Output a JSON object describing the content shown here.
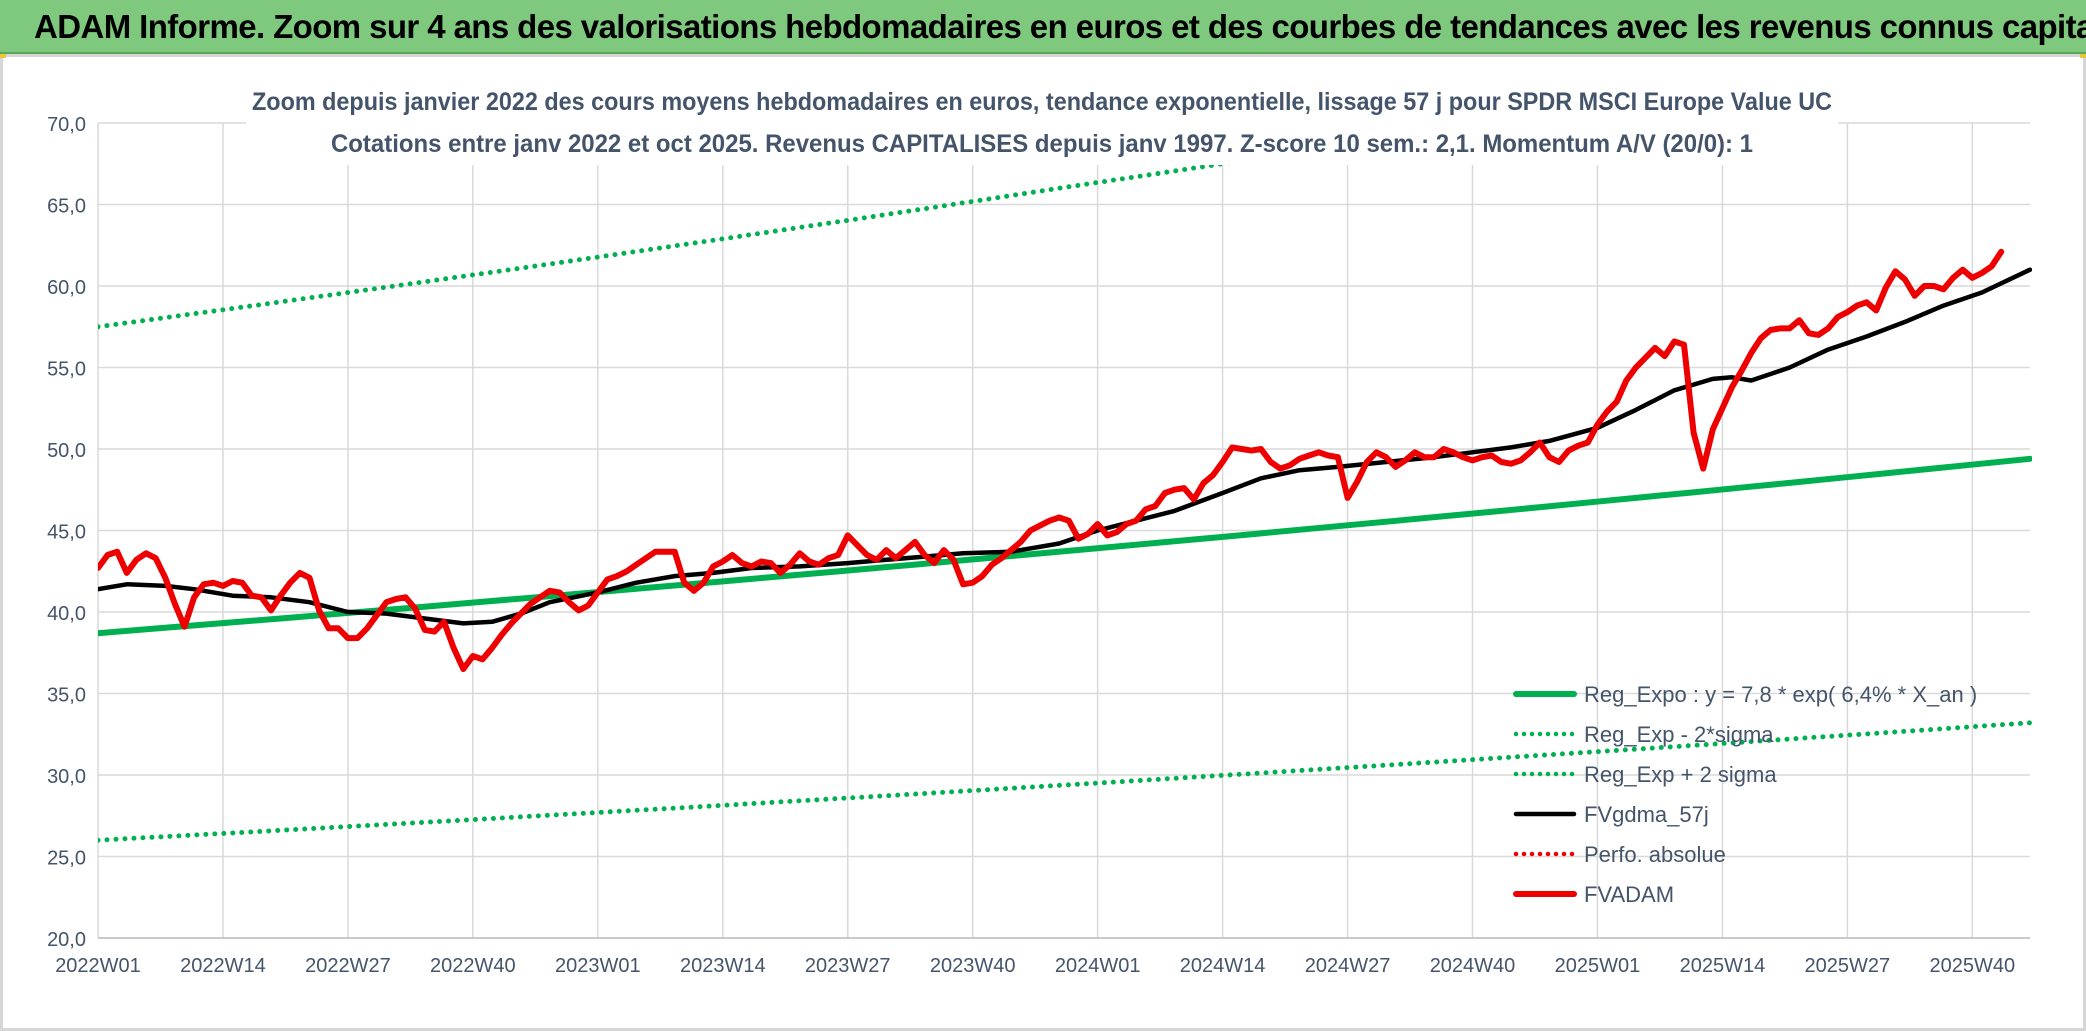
{
  "banner": {
    "title": "ADAM Informe. Zoom sur 4 ans des valorisations hebdomadaires en euros et des courbes de tendances avec les revenus connus capitalisés"
  },
  "colors": {
    "banner_bg": "#7fc97f",
    "green": "#00b050",
    "red": "#ee0000",
    "black": "#000000",
    "axis_text": "#44546a",
    "grid": "#d9d9d9"
  },
  "chart_data": {
    "type": "line",
    "title": "Zoom depuis janvier 2022 des cours moyens hebdomadaires en euros, tendance exponentielle, lissage 57 j pour SPDR MSCI Europe Value UC",
    "subtitle": "Cotations entre janv 2022 et oct 2025. Revenus CAPITALISES depuis janv 1997. Z-score 10 sem.: 2,1. Momentum A/V (20/0): 1",
    "xlabel": "",
    "ylabel": "",
    "ylim": [
      20,
      70
    ],
    "y_ticks": [
      "70,0",
      "65,0",
      "60,0",
      "55,0",
      "50,0",
      "45,0",
      "40,0",
      "35,0",
      "30,0",
      "25,0",
      "20,0"
    ],
    "x_tick_labels": [
      "2022W01",
      "2022W14",
      "2022W27",
      "2022W40",
      "2023W01",
      "2023W14",
      "2023W27",
      "2023W40",
      "2024W01",
      "2024W14",
      "2024W27",
      "2024W40",
      "2025W01",
      "2025W14",
      "2025W27",
      "2025W40"
    ],
    "x_range_weeks": [
      0,
      201
    ],
    "grid": true,
    "legend_position": "bottom-right",
    "legend": [
      {
        "label": "Reg_Expo : y = 7,8 * exp( 6,4% *  X_an )",
        "style": "solid-thick",
        "color": "#00b050"
      },
      {
        "label": "Reg_Exp - 2*sigma",
        "style": "dotted",
        "color": "#00b050"
      },
      {
        "label": "Reg_Exp + 2 sigma",
        "style": "dotted",
        "color": "#00b050"
      },
      {
        "label": "FVgdma_57j",
        "style": "solid",
        "color": "#000000"
      },
      {
        "label": "Perfo. absolue",
        "style": "dotted",
        "color": "#ee0000"
      },
      {
        "label": "FVADAM",
        "style": "solid-thick",
        "color": "#ee0000"
      }
    ],
    "series": [
      {
        "name": "Reg_Expo",
        "points": [
          [
            0,
            38.7
          ],
          [
            201,
            49.4
          ]
        ]
      },
      {
        "name": "Reg_Exp - 2*sigma",
        "points": [
          [
            0,
            26.0
          ],
          [
            201,
            33.2
          ]
        ]
      },
      {
        "name": "Reg_Exp + 2 sigma",
        "points": [
          [
            0,
            57.5
          ],
          [
            100,
            66.0
          ],
          [
            201,
            75.4
          ]
        ]
      },
      {
        "name": "FVgdma_57j",
        "points": [
          [
            0,
            41.4
          ],
          [
            3,
            41.7
          ],
          [
            7,
            41.6
          ],
          [
            10,
            41.4
          ],
          [
            14,
            41.0
          ],
          [
            18,
            40.9
          ],
          [
            22,
            40.6
          ],
          [
            26,
            40.0
          ],
          [
            30,
            39.9
          ],
          [
            34,
            39.6
          ],
          [
            38,
            39.3
          ],
          [
            41,
            39.4
          ],
          [
            44,
            39.9
          ],
          [
            47,
            40.6
          ],
          [
            52,
            41.2
          ],
          [
            56,
            41.8
          ],
          [
            60,
            42.2
          ],
          [
            64,
            42.4
          ],
          [
            68,
            42.7
          ],
          [
            73,
            42.8
          ],
          [
            78,
            43.0
          ],
          [
            82,
            43.2
          ],
          [
            86,
            43.4
          ],
          [
            90,
            43.6
          ],
          [
            95,
            43.7
          ],
          [
            100,
            44.2
          ],
          [
            104,
            45.0
          ],
          [
            108,
            45.6
          ],
          [
            112,
            46.2
          ],
          [
            117,
            47.3
          ],
          [
            121,
            48.2
          ],
          [
            125,
            48.7
          ],
          [
            129,
            48.9
          ],
          [
            134,
            49.2
          ],
          [
            139,
            49.5
          ],
          [
            143,
            49.8
          ],
          [
            147,
            50.1
          ],
          [
            151,
            50.5
          ],
          [
            156,
            51.3
          ],
          [
            160,
            52.4
          ],
          [
            164,
            53.6
          ],
          [
            168,
            54.3
          ],
          [
            170,
            54.4
          ],
          [
            172,
            54.2
          ],
          [
            176,
            55.0
          ],
          [
            180,
            56.1
          ],
          [
            184,
            56.9
          ],
          [
            188,
            57.8
          ],
          [
            192,
            58.8
          ],
          [
            196,
            59.6
          ],
          [
            201,
            61.0
          ]
        ]
      },
      {
        "name": "FVADAM",
        "points": [
          [
            0,
            42.7
          ],
          [
            1,
            43.5
          ],
          [
            2,
            43.7
          ],
          [
            3,
            42.4
          ],
          [
            4,
            43.2
          ],
          [
            5,
            43.6
          ],
          [
            6,
            43.3
          ],
          [
            7,
            42.1
          ],
          [
            8,
            40.5
          ],
          [
            9,
            39.1
          ],
          [
            10,
            40.9
          ],
          [
            11,
            41.7
          ],
          [
            12,
            41.8
          ],
          [
            13,
            41.6
          ],
          [
            14,
            41.9
          ],
          [
            15,
            41.8
          ],
          [
            16,
            41.0
          ],
          [
            17,
            40.9
          ],
          [
            18,
            40.1
          ],
          [
            19,
            41.0
          ],
          [
            20,
            41.8
          ],
          [
            21,
            42.4
          ],
          [
            22,
            42.1
          ],
          [
            23,
            40.1
          ],
          [
            24,
            39.0
          ],
          [
            25,
            39.0
          ],
          [
            26,
            38.4
          ],
          [
            27,
            38.4
          ],
          [
            28,
            39.0
          ],
          [
            29,
            39.8
          ],
          [
            30,
            40.6
          ],
          [
            31,
            40.8
          ],
          [
            32,
            40.9
          ],
          [
            33,
            40.2
          ],
          [
            34,
            38.9
          ],
          [
            35,
            38.8
          ],
          [
            36,
            39.4
          ],
          [
            37,
            37.8
          ],
          [
            38,
            36.5
          ],
          [
            39,
            37.3
          ],
          [
            40,
            37.1
          ],
          [
            41,
            37.8
          ],
          [
            42,
            38.6
          ],
          [
            43,
            39.3
          ],
          [
            44,
            39.9
          ],
          [
            45,
            40.5
          ],
          [
            46,
            40.9
          ],
          [
            47,
            41.3
          ],
          [
            48,
            41.2
          ],
          [
            49,
            40.6
          ],
          [
            50,
            40.1
          ],
          [
            51,
            40.4
          ],
          [
            52,
            41.2
          ],
          [
            53,
            42.0
          ],
          [
            54,
            42.2
          ],
          [
            55,
            42.5
          ],
          [
            56,
            42.9
          ],
          [
            57,
            43.3
          ],
          [
            58,
            43.7
          ],
          [
            59,
            43.7
          ],
          [
            60,
            43.7
          ],
          [
            61,
            41.8
          ],
          [
            62,
            41.3
          ],
          [
            63,
            41.8
          ],
          [
            64,
            42.8
          ],
          [
            65,
            43.1
          ],
          [
            66,
            43.5
          ],
          [
            67,
            43.0
          ],
          [
            68,
            42.8
          ],
          [
            69,
            43.1
          ],
          [
            70,
            43.0
          ],
          [
            71,
            42.4
          ],
          [
            72,
            42.9
          ],
          [
            73,
            43.6
          ],
          [
            74,
            43.1
          ],
          [
            75,
            42.9
          ],
          [
            76,
            43.3
          ],
          [
            77,
            43.5
          ],
          [
            78,
            44.7
          ],
          [
            79,
            44.1
          ],
          [
            80,
            43.5
          ],
          [
            81,
            43.2
          ],
          [
            82,
            43.8
          ],
          [
            83,
            43.3
          ],
          [
            84,
            43.8
          ],
          [
            85,
            44.3
          ],
          [
            86,
            43.5
          ],
          [
            87,
            43.0
          ],
          [
            88,
            43.8
          ],
          [
            89,
            43.2
          ],
          [
            90,
            41.7
          ],
          [
            91,
            41.8
          ],
          [
            92,
            42.2
          ],
          [
            93,
            42.9
          ],
          [
            94,
            43.3
          ],
          [
            95,
            43.8
          ],
          [
            96,
            44.3
          ],
          [
            97,
            45.0
          ],
          [
            98,
            45.3
          ],
          [
            99,
            45.6
          ],
          [
            100,
            45.8
          ],
          [
            101,
            45.6
          ],
          [
            102,
            44.5
          ],
          [
            103,
            44.8
          ],
          [
            104,
            45.4
          ],
          [
            105,
            44.7
          ],
          [
            106,
            44.9
          ],
          [
            107,
            45.4
          ],
          [
            108,
            45.6
          ],
          [
            109,
            46.3
          ],
          [
            110,
            46.5
          ],
          [
            111,
            47.3
          ],
          [
            112,
            47.5
          ],
          [
            113,
            47.6
          ],
          [
            114,
            46.9
          ],
          [
            115,
            47.9
          ],
          [
            116,
            48.4
          ],
          [
            117,
            49.2
          ],
          [
            118,
            50.1
          ],
          [
            119,
            50.0
          ],
          [
            120,
            49.9
          ],
          [
            121,
            50.0
          ],
          [
            122,
            49.2
          ],
          [
            123,
            48.8
          ],
          [
            124,
            49.0
          ],
          [
            125,
            49.4
          ],
          [
            126,
            49.6
          ],
          [
            127,
            49.8
          ],
          [
            128,
            49.6
          ],
          [
            129,
            49.5
          ],
          [
            130,
            47.0
          ],
          [
            131,
            48.0
          ],
          [
            132,
            49.2
          ],
          [
            133,
            49.8
          ],
          [
            134,
            49.5
          ],
          [
            135,
            48.9
          ],
          [
            136,
            49.3
          ],
          [
            137,
            49.8
          ],
          [
            138,
            49.5
          ],
          [
            139,
            49.5
          ],
          [
            140,
            50.0
          ],
          [
            141,
            49.8
          ],
          [
            142,
            49.5
          ],
          [
            143,
            49.3
          ],
          [
            144,
            49.5
          ],
          [
            145,
            49.6
          ],
          [
            146,
            49.2
          ],
          [
            147,
            49.1
          ],
          [
            148,
            49.3
          ],
          [
            149,
            49.8
          ],
          [
            150,
            50.4
          ],
          [
            151,
            49.5
          ],
          [
            152,
            49.2
          ],
          [
            153,
            49.9
          ],
          [
            154,
            50.2
          ],
          [
            155,
            50.4
          ],
          [
            156,
            51.5
          ],
          [
            157,
            52.3
          ],
          [
            158,
            52.9
          ],
          [
            159,
            54.2
          ],
          [
            160,
            55.0
          ],
          [
            161,
            55.6
          ],
          [
            162,
            56.2
          ],
          [
            163,
            55.7
          ],
          [
            164,
            56.6
          ],
          [
            165,
            56.4
          ],
          [
            166,
            51.0
          ],
          [
            167,
            48.8
          ],
          [
            168,
            51.2
          ],
          [
            169,
            52.5
          ],
          [
            170,
            53.8
          ],
          [
            171,
            54.8
          ],
          [
            172,
            55.9
          ],
          [
            173,
            56.8
          ],
          [
            174,
            57.3
          ],
          [
            175,
            57.4
          ],
          [
            176,
            57.4
          ],
          [
            177,
            57.9
          ],
          [
            178,
            57.1
          ],
          [
            179,
            57.0
          ],
          [
            180,
            57.4
          ],
          [
            181,
            58.1
          ],
          [
            182,
            58.4
          ],
          [
            183,
            58.8
          ],
          [
            184,
            59.0
          ],
          [
            185,
            58.5
          ],
          [
            186,
            59.9
          ],
          [
            187,
            60.9
          ],
          [
            188,
            60.4
          ],
          [
            189,
            59.4
          ],
          [
            190,
            60.0
          ],
          [
            191,
            60.0
          ],
          [
            192,
            59.8
          ],
          [
            193,
            60.5
          ],
          [
            194,
            61.0
          ],
          [
            195,
            60.5
          ],
          [
            196,
            60.8
          ],
          [
            197,
            61.2
          ],
          [
            198,
            62.1
          ]
        ]
      }
    ]
  }
}
